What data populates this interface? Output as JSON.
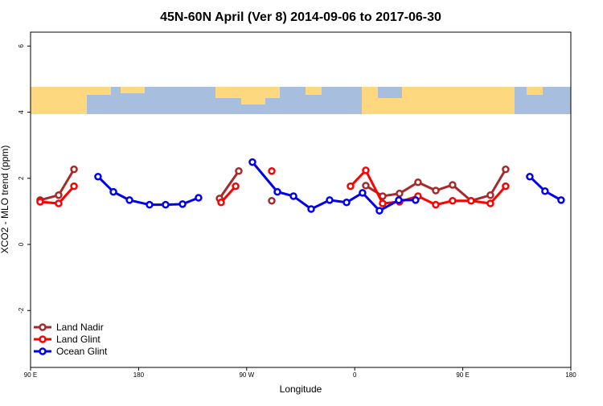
{
  "chart_data": {
    "type": "line",
    "title": "45N-60N April (Ver 8)   2014-09-06 to 2017-06-30",
    "x_label": "Longitude",
    "y_label": "XCO2 - MLO trend (ppm)",
    "xlim": [
      90,
      540
    ],
    "xticks": [
      {
        "value": 90,
        "label": "90 E"
      },
      180,
      {
        "value": 270,
        "label": "90 W"
      },
      {
        "value": 360,
        "label": "0"
      },
      {
        "value": 450,
        "label": "90 E"
      },
      {
        "value": 540,
        "label": "180"
      }
    ],
    "ylim": [
      -3.72,
      6.42
    ],
    "yticks": [
      -2,
      0,
      2,
      4,
      6
    ],
    "legend": "bottomleft",
    "series": [
      {
        "name": "Land Nadir",
        "color": "#a52a2a",
        "x": [
          98.0,
          113.4,
          126.2,
          null,
          247.4,
          263.4,
          null,
          290.9,
          null,
          369.2,
          383.3,
          397.3,
          412.7,
          427.5,
          441.5,
          456.9,
          473.0,
          485.7
        ],
        "values": [
          1.34,
          1.49,
          2.27,
          null,
          1.39,
          2.22,
          null,
          1.32,
          null,
          1.78,
          1.46,
          1.54,
          1.88,
          1.63,
          1.8,
          1.32,
          1.49,
          2.27
        ]
      },
      {
        "name": "Land Glint",
        "color": "#ff0000",
        "x": [
          98.0,
          113.4,
          126.2,
          null,
          248.7,
          260.8,
          null,
          290.9,
          null,
          356.5,
          369.2,
          383.3,
          397.3,
          412.7,
          427.5,
          441.5,
          456.9,
          473.0,
          485.7
        ],
        "values": [
          1.29,
          1.24,
          1.76,
          null,
          1.27,
          1.76,
          null,
          2.22,
          null,
          1.76,
          2.24,
          1.24,
          1.29,
          1.46,
          1.2,
          1.32,
          1.32,
          1.24,
          1.76
        ]
      },
      {
        "name": "Ocean Glint",
        "color": "#0000ee",
        "x": [
          146.2,
          159.0,
          172.4,
          189.1,
          202.5,
          216.6,
          229.9,
          null,
          274.8,
          295.6,
          309.0,
          323.7,
          339.1,
          353.2,
          366.5,
          380.6,
          396.7,
          410.7,
          null,
          505.8,
          518.5,
          531.9
        ],
        "values": [
          2.05,
          1.59,
          1.34,
          1.2,
          1.2,
          1.22,
          1.41,
          null,
          2.49,
          1.59,
          1.46,
          1.07,
          1.34,
          1.27,
          1.56,
          1.02,
          1.34,
          1.34,
          null,
          2.05,
          1.61,
          1.34
        ]
      }
    ]
  }
}
